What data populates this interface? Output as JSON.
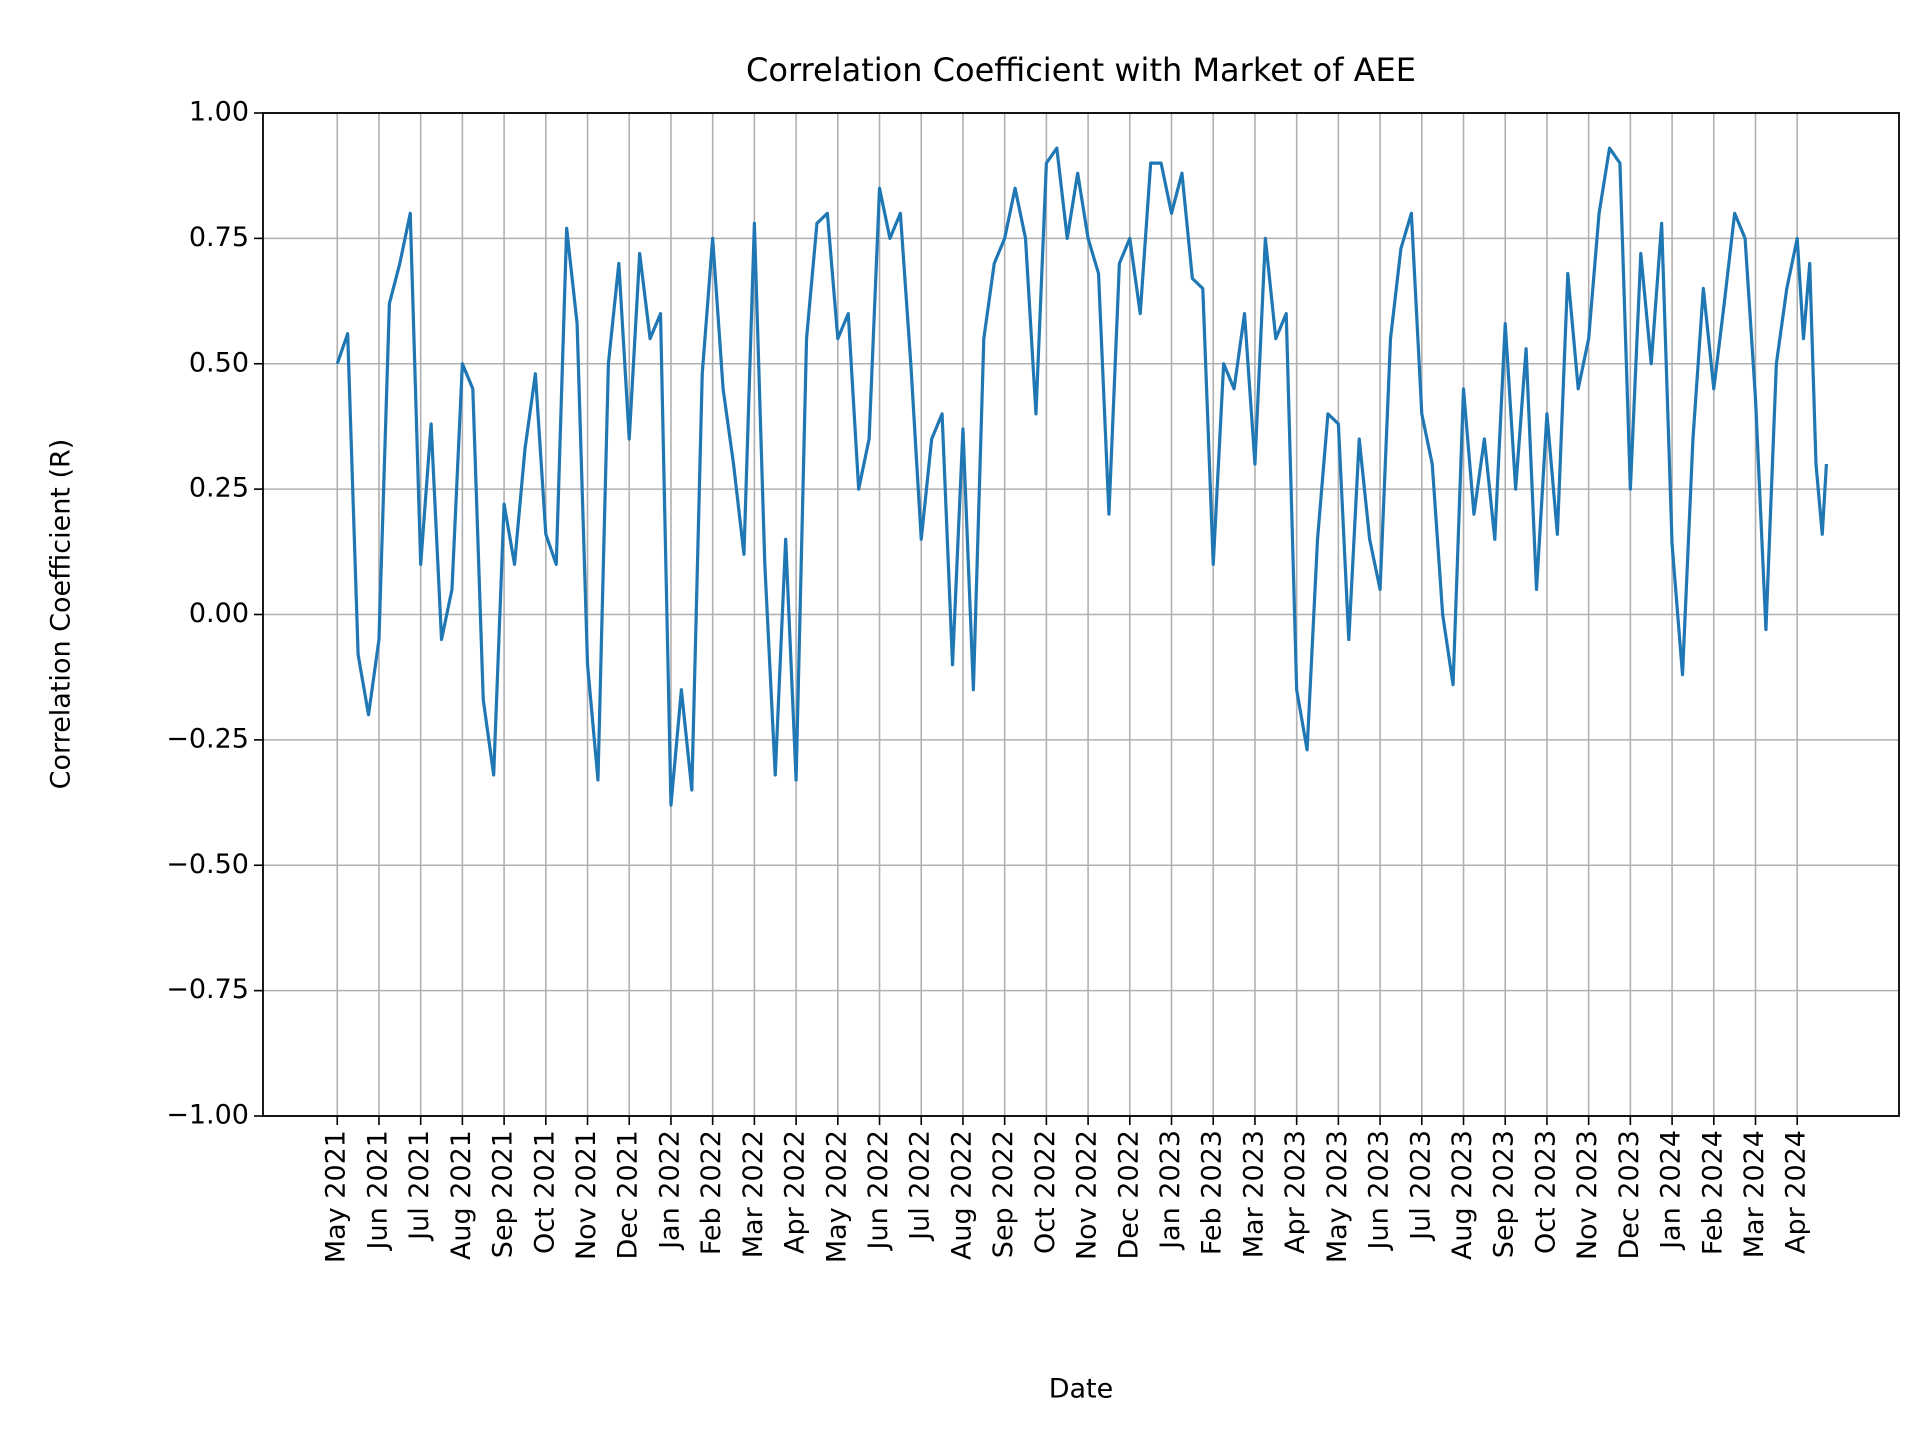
{
  "chart_data": {
    "type": "line",
    "title": "Correlation Coefficient with Market of AEE",
    "xlabel": "Date",
    "ylabel": "Correlation Coefficient (R)",
    "xlim": [
      -1.78,
      37.44
    ],
    "ylim": [
      -1,
      1
    ],
    "grid": true,
    "yticks": [
      {
        "value": -1,
        "label": "−1.00"
      },
      {
        "value": -0.75,
        "label": "−0.75"
      },
      {
        "value": -0.5,
        "label": "−0.50"
      },
      {
        "value": -0.25,
        "label": "−0.25"
      },
      {
        "value": 0,
        "label": "0.00"
      },
      {
        "value": 0.25,
        "label": "0.25"
      },
      {
        "value": 0.5,
        "label": "0.50"
      },
      {
        "value": 0.75,
        "label": "0.75"
      },
      {
        "value": 1,
        "label": "1.00"
      }
    ],
    "xticks": [
      {
        "value": 0,
        "label": "May 2021"
      },
      {
        "value": 1,
        "label": "Jun 2021"
      },
      {
        "value": 2,
        "label": "Jul 2021"
      },
      {
        "value": 3,
        "label": "Aug 2021"
      },
      {
        "value": 4,
        "label": "Sep 2021"
      },
      {
        "value": 5,
        "label": "Oct 2021"
      },
      {
        "value": 6,
        "label": "Nov 2021"
      },
      {
        "value": 7,
        "label": "Dec 2021"
      },
      {
        "value": 8,
        "label": "Jan 2022"
      },
      {
        "value": 9,
        "label": "Feb 2022"
      },
      {
        "value": 10,
        "label": "Mar 2022"
      },
      {
        "value": 11,
        "label": "Apr 2022"
      },
      {
        "value": 12,
        "label": "May 2022"
      },
      {
        "value": 13,
        "label": "Jun 2022"
      },
      {
        "value": 14,
        "label": "Jul 2022"
      },
      {
        "value": 15,
        "label": "Aug 2022"
      },
      {
        "value": 16,
        "label": "Sep 2022"
      },
      {
        "value": 17,
        "label": "Oct 2022"
      },
      {
        "value": 18,
        "label": "Nov 2022"
      },
      {
        "value": 19,
        "label": "Dec 2022"
      },
      {
        "value": 20,
        "label": "Jan 2023"
      },
      {
        "value": 21,
        "label": "Feb 2023"
      },
      {
        "value": 22,
        "label": "Mar 2023"
      },
      {
        "value": 23,
        "label": "Apr 2023"
      },
      {
        "value": 24,
        "label": "May 2023"
      },
      {
        "value": 25,
        "label": "Jun 2023"
      },
      {
        "value": 26,
        "label": "Jul 2023"
      },
      {
        "value": 27,
        "label": "Aug 2023"
      },
      {
        "value": 28,
        "label": "Sep 2023"
      },
      {
        "value": 29,
        "label": "Oct 2023"
      },
      {
        "value": 30,
        "label": "Nov 2023"
      },
      {
        "value": 31,
        "label": "Dec 2023"
      },
      {
        "value": 32,
        "label": "Jan 2024"
      },
      {
        "value": 33,
        "label": "Feb 2024"
      },
      {
        "value": 34,
        "label": "Mar 2024"
      },
      {
        "value": 35,
        "label": "Apr 2024"
      }
    ],
    "x": [
      0,
      0.25,
      0.5,
      0.75,
      1,
      1.25,
      1.5,
      1.75,
      2,
      2.25,
      2.5,
      2.75,
      3,
      3.25,
      3.5,
      3.75,
      4,
      4.25,
      4.5,
      4.75,
      5,
      5.25,
      5.5,
      5.75,
      6,
      6.25,
      6.5,
      6.75,
      7,
      7.25,
      7.5,
      7.75,
      8,
      8.25,
      8.5,
      8.75,
      9,
      9.25,
      9.5,
      9.75,
      10,
      10.25,
      10.5,
      10.75,
      11,
      11.25,
      11.5,
      11.75,
      12,
      12.25,
      12.5,
      12.75,
      13,
      13.25,
      13.5,
      13.75,
      14,
      14.25,
      14.5,
      14.75,
      15,
      15.25,
      15.5,
      15.75,
      16,
      16.25,
      16.5,
      16.75,
      17,
      17.25,
      17.5,
      17.75,
      18,
      18.25,
      18.5,
      18.75,
      19,
      19.25,
      19.5,
      19.75,
      20,
      20.25,
      20.5,
      20.75,
      21,
      21.25,
      21.5,
      21.75,
      22,
      22.25,
      22.5,
      22.75,
      23,
      23.25,
      23.5,
      23.75,
      24,
      24.25,
      24.5,
      24.75,
      25,
      25.25,
      25.5,
      25.75,
      26,
      26.25,
      26.5,
      26.75,
      27,
      27.25,
      27.5,
      27.75,
      28,
      28.25,
      28.5,
      28.75,
      29,
      29.25,
      29.5,
      29.75,
      30,
      30.25,
      30.5,
      30.75,
      31,
      31.25,
      31.5,
      31.75,
      32,
      32.25,
      32.5,
      32.75,
      33,
      33.25,
      33.5,
      33.75,
      34,
      34.25,
      34.5,
      34.75,
      35,
      35.15,
      35.3,
      35.45,
      35.6,
      35.7
    ],
    "series": [
      {
        "color": "#1f77b4",
        "values": [
          0.5,
          0.56,
          -0.08,
          -0.2,
          -0.05,
          0.62,
          0.7,
          0.8,
          0.1,
          0.38,
          -0.05,
          0.05,
          0.5,
          0.45,
          -0.17,
          -0.32,
          0.22,
          0.1,
          0.33,
          0.48,
          0.16,
          0.1,
          0.77,
          0.58,
          -0.1,
          -0.33,
          0.5,
          0.7,
          0.35,
          0.72,
          0.55,
          0.6,
          -0.38,
          -0.15,
          -0.35,
          0.48,
          0.75,
          0.45,
          0.3,
          0.12,
          0.78,
          0.1,
          -0.32,
          0.15,
          -0.33,
          0.55,
          0.78,
          0.8,
          0.55,
          0.6,
          0.25,
          0.35,
          0.85,
          0.75,
          0.8,
          0.5,
          0.15,
          0.35,
          0.4,
          -0.1,
          0.37,
          -0.15,
          0.55,
          0.7,
          0.75,
          0.85,
          0.75,
          0.4,
          0.9,
          0.93,
          0.75,
          0.88,
          0.75,
          0.68,
          0.2,
          0.7,
          0.75,
          0.6,
          0.9,
          0.9,
          0.8,
          0.88,
          0.67,
          0.65,
          0.1,
          0.5,
          0.45,
          0.6,
          0.3,
          0.75,
          0.55,
          0.6,
          -0.15,
          -0.27,
          0.15,
          0.4,
          0.38,
          -0.05,
          0.35,
          0.15,
          0.05,
          0.55,
          0.73,
          0.8,
          0.4,
          0.3,
          0.0,
          -0.14,
          0.45,
          0.2,
          0.35,
          0.15,
          0.58,
          0.25,
          0.53,
          0.05,
          0.4,
          0.16,
          0.68,
          0.45,
          0.55,
          0.8,
          0.93,
          0.9,
          0.25,
          0.72,
          0.5,
          0.78,
          0.14,
          -0.12,
          0.35,
          0.65,
          0.45,
          0.62,
          0.8,
          0.75,
          0.43,
          -0.03,
          0.5,
          0.65,
          0.75,
          0.55,
          0.7,
          0.3,
          0.16,
          0.3
        ]
      }
    ]
  }
}
